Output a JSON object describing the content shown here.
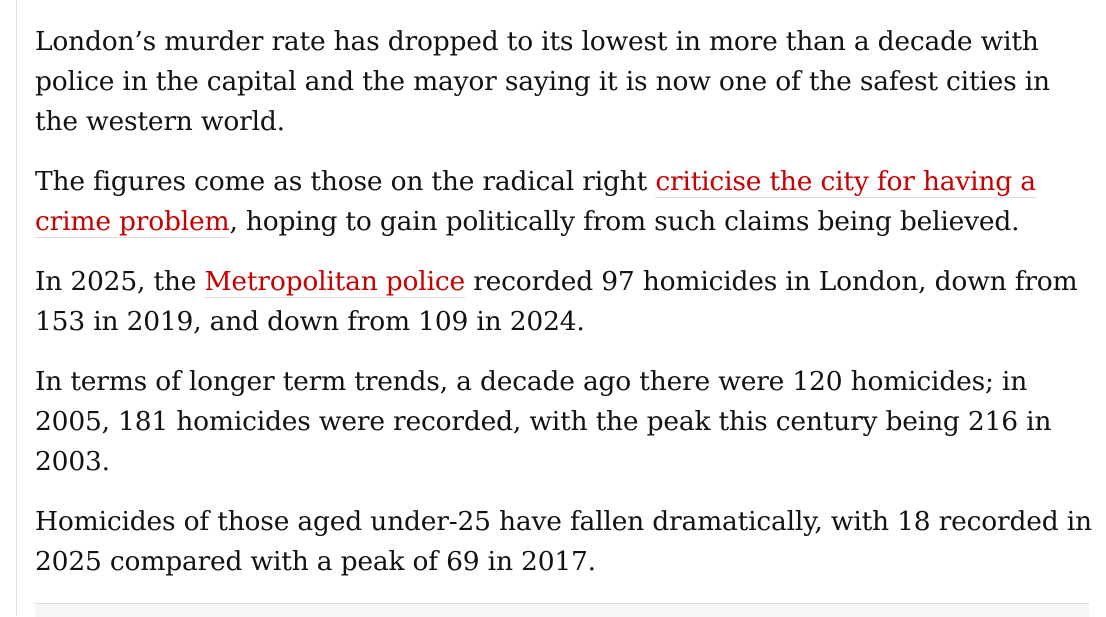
{
  "article": {
    "p1": "London’s murder rate has dropped to its lowest in more than a decade with police in the capital and the mayor saying it is now one of the safest cities in the western world.",
    "p2_before": "The figures come as those on the radical right ",
    "p2_link": "criticise the city for having a crime problem",
    "p2_after": ", hoping to gain politically from such claims being believed.",
    "p3_before": "In 2025, the ",
    "p3_link": "Metropolitan police",
    "p3_after": " recorded 97 homicides in London, down from 153 in 2019, and down from 109 in 2024.",
    "p4": "In terms of longer term trends, a decade ago there were 120 homicides; in 2005, 181 homicides were recorded, with the peak this century being 216 in 2003.",
    "p5": "Homicides of those aged under-25 have fallen dramatically, with 18 recorded in 2025 compared with a peak of 69 in 2017."
  },
  "colors": {
    "text": "#121212",
    "link": "#c70000",
    "rule": "#dcdcdc"
  }
}
